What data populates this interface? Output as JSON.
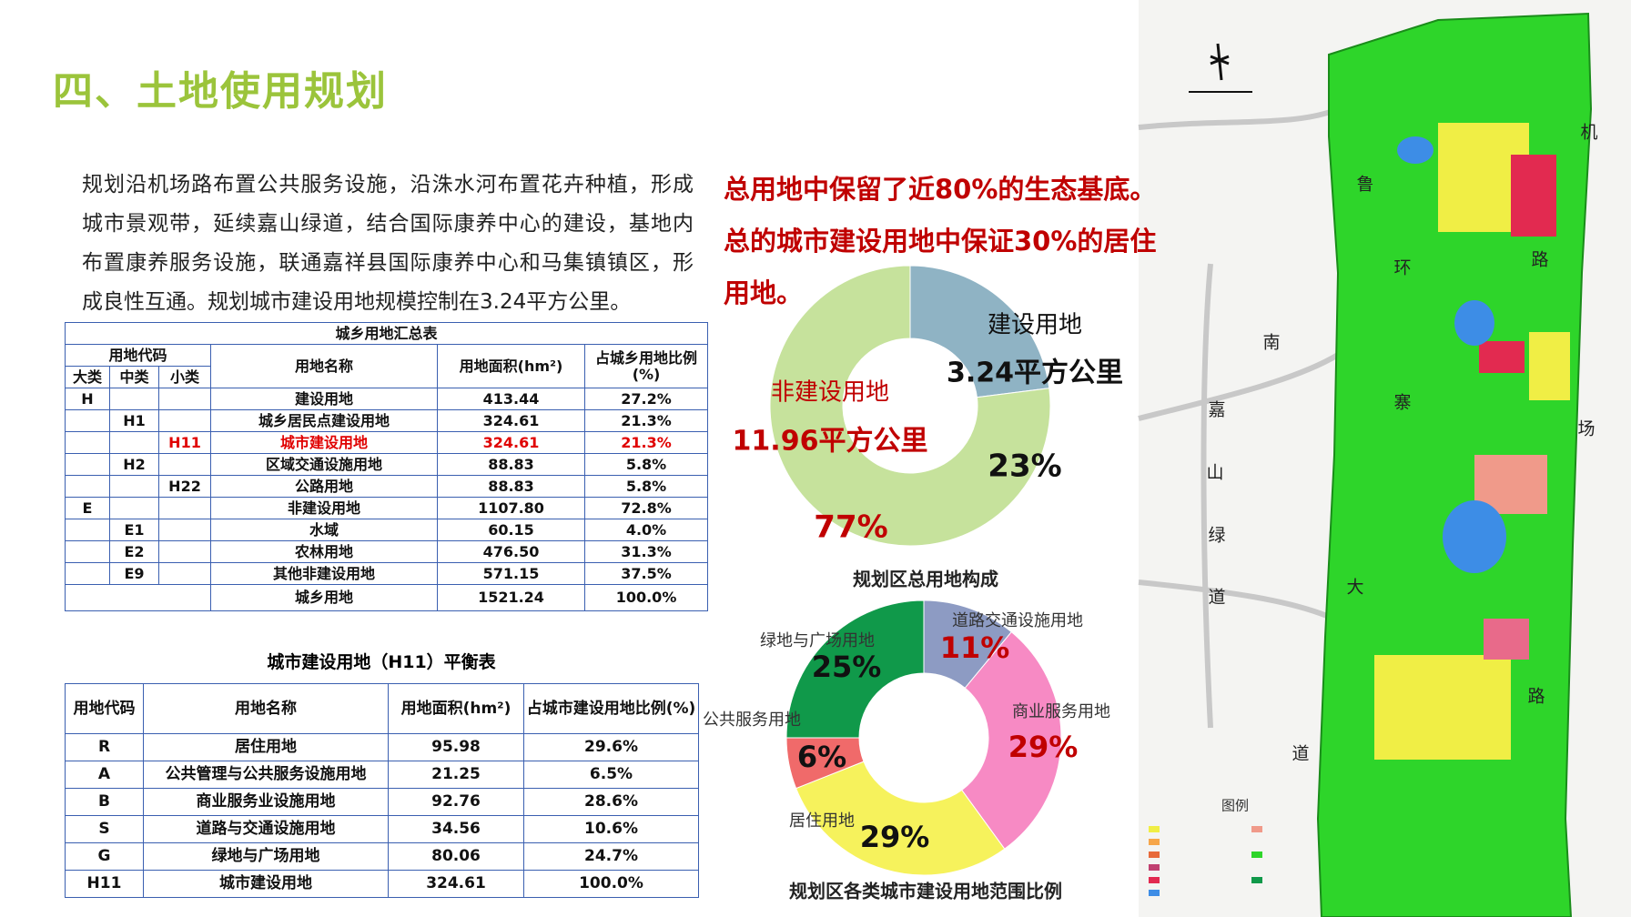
{
  "header": {
    "title": "四、土地使用规划"
  },
  "intro": [
    "规划沿机场路布置公共服务设施，沿洙水河布置花卉种植，形成",
    "城市景观带，延续嘉山绿道，结合国际康养中心的建设，基地内",
    "布置康养服务设施，联通嘉祥县国际康养中心和马集镇镇区，形",
    "成良性互通。规划城市建设用地规模控制在3.24平方公里。"
  ],
  "highlights": [
    "总用地中保留了近80%的生态基底。",
    "总的城市建设用地中保证30%的居住",
    "用地。"
  ],
  "table1": {
    "title": "城乡用地汇总表",
    "code_header": "用地代码",
    "code_levels": [
      "大类",
      "中类",
      "小类"
    ],
    "columns": [
      "用地名称",
      "用地面积(hm²)",
      "占城乡用地比例(%)"
    ],
    "rows": [
      {
        "code": "H",
        "name": "建设用地",
        "area": "413.44",
        "share": "27.2%"
      },
      {
        "code": "H1",
        "name": "城乡居民点建设用地",
        "area": "324.61",
        "share": "21.3%"
      },
      {
        "code": "H11",
        "name": "城市建设用地",
        "area": "324.61",
        "share": "21.3%",
        "highlight": true
      },
      {
        "code": "H2",
        "name": "区域交通设施用地",
        "area": "88.83",
        "share": "5.8%"
      },
      {
        "code": "H22",
        "name": "公路用地",
        "area": "88.83",
        "share": "5.8%"
      },
      {
        "code": "E",
        "name": "非建设用地",
        "area": "1107.80",
        "share": "72.8%"
      },
      {
        "code": "E1",
        "name": "水域",
        "area": "60.15",
        "share": "4.0%"
      },
      {
        "code": "E2",
        "name": "农林用地",
        "area": "476.50",
        "share": "31.3%"
      },
      {
        "code": "E9",
        "name": "其他非建设用地",
        "area": "571.15",
        "share": "37.5%"
      }
    ],
    "total": {
      "name": "城乡用地",
      "area": "1521.24",
      "share": "100.0%"
    }
  },
  "table2": {
    "title": "城市建设用地（H11）平衡表",
    "columns": [
      "用地代码",
      "用地名称",
      "用地面积(hm²)",
      "占城市建设用地比例(%)"
    ],
    "rows": [
      [
        "R",
        "居住用地",
        "95.98",
        "29.6%"
      ],
      [
        "A",
        "公共管理与公共服务设施用地",
        "21.25",
        "6.5%"
      ],
      [
        "B",
        "商业服务业设施用地",
        "92.76",
        "28.6%"
      ],
      [
        "S",
        "道路与交通设施用地",
        "34.56",
        "10.6%"
      ],
      [
        "G",
        "绿地与广场用地",
        "80.06",
        "24.7%"
      ],
      [
        "H11",
        "城市建设用地",
        "324.61",
        "100.0%"
      ]
    ]
  },
  "chart_data": [
    {
      "type": "donut",
      "title": "规划区总用地构成",
      "categories": [
        "建设用地",
        "非建设用地"
      ],
      "area_labels": [
        "3.24平方公里",
        "11.96平方公里"
      ],
      "values": [
        23,
        77
      ],
      "value_labels": [
        "23%",
        "77%"
      ],
      "colors": [
        "#8fb3c4",
        "#c6e29c"
      ],
      "category_label_colors": [
        "#111111",
        "#c00000"
      ],
      "value_label_colors": [
        "#111111",
        "#c00000"
      ]
    },
    {
      "type": "donut",
      "title": "规划区各类城市建设用地范围比例",
      "categories": [
        "道路交通设施用地",
        "商业服务用地",
        "居住用地",
        "公共服务用地",
        "绿地与广场用地"
      ],
      "values": [
        11,
        29,
        29,
        6,
        25
      ],
      "value_labels": [
        "11%",
        "29%",
        "29%",
        "6%",
        "25%"
      ],
      "colors": [
        "#8d9bc3",
        "#f78ac4",
        "#f6f25c",
        "#f06a6a",
        "#10994a"
      ],
      "category_label_colors": [
        "#333333",
        "#333333",
        "#333333",
        "#333333",
        "#333333"
      ],
      "value_label_colors": [
        "#c00000",
        "#c00000",
        "#111111",
        "#111111",
        "#111111"
      ]
    }
  ],
  "map": {
    "labels": [
      "机",
      "鲁",
      "环",
      "路",
      "南",
      "嘉",
      "寨",
      "场",
      "山",
      "绿",
      "大",
      "道",
      "路",
      "道"
    ],
    "legend_title": "图例"
  }
}
